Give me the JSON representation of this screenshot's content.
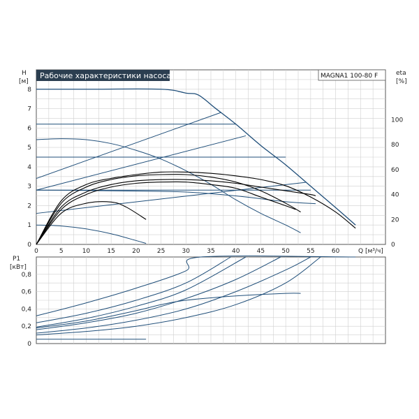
{
  "colors": {
    "curve": "#1f4e79",
    "eta": "#000000",
    "grid": "#cfcfcf",
    "frame": "#555555",
    "title_bg": "#2b3e50"
  },
  "chart_data": [
    {
      "type": "line",
      "title": "Рабочие характеристики насоса",
      "model": "MAGNA1 100-80 F",
      "ylabel": "H",
      "yunit": "[м]",
      "y2label": "eta",
      "y2unit": "[%]",
      "xlabel": "Q",
      "xunit": "[м³/ч]",
      "xlim": [
        0,
        70
      ],
      "ylim": [
        0,
        9
      ],
      "y2lim": [
        0,
        140
      ],
      "x_ticks": [
        "0",
        "5",
        "10",
        "15",
        "20",
        "25",
        "30",
        "35",
        "40",
        "45",
        "50",
        "55",
        "60"
      ],
      "y_ticks": [
        "0",
        "1",
        "2",
        "3",
        "4",
        "5",
        "6",
        "7",
        "8"
      ],
      "y2_ticks": [
        "0",
        "20",
        "40",
        "60",
        "80",
        "100"
      ],
      "grid": true,
      "head_curves": [
        [
          [
            0,
            8.0
          ],
          [
            10,
            8.0
          ],
          [
            25,
            8.0
          ],
          [
            30,
            7.8
          ],
          [
            32.5,
            7.7
          ],
          [
            36,
            7.0
          ],
          [
            40,
            6.2
          ],
          [
            45,
            5.1
          ],
          [
            50,
            4.1
          ],
          [
            55,
            3.0
          ],
          [
            60,
            1.9
          ],
          [
            64,
            1.0
          ]
        ],
        [
          [
            0,
            6.2
          ],
          [
            30,
            6.2
          ],
          [
            40,
            6.2
          ]
        ],
        [
          [
            0,
            4.5
          ],
          [
            30,
            4.5
          ],
          [
            50,
            4.5
          ]
        ],
        [
          [
            0,
            2.8
          ],
          [
            30,
            2.8
          ],
          [
            55,
            2.8
          ]
        ],
        [
          [
            0,
            3.4
          ],
          [
            37,
            6.8
          ]
        ],
        [
          [
            0,
            2.8
          ],
          [
            42,
            5.6
          ]
        ],
        [
          [
            0,
            1.6
          ],
          [
            54,
            3.2
          ]
        ],
        [
          [
            0,
            5.4
          ],
          [
            5,
            5.45
          ],
          [
            10,
            5.4
          ],
          [
            15,
            5.2
          ],
          [
            20,
            4.85
          ],
          [
            25,
            4.4
          ],
          [
            30,
            3.8
          ],
          [
            35,
            3.1
          ],
          [
            40,
            2.3
          ],
          [
            45,
            1.6
          ],
          [
            50,
            1.0
          ],
          [
            53,
            0.6
          ]
        ],
        [
          [
            0,
            1.0
          ],
          [
            5,
            0.95
          ],
          [
            10,
            0.8
          ],
          [
            15,
            0.55
          ],
          [
            20,
            0.2
          ],
          [
            22,
            0.05
          ]
        ],
        [
          [
            0,
            2.8
          ],
          [
            10,
            2.78
          ],
          [
            20,
            2.75
          ],
          [
            30,
            2.7
          ],
          [
            40,
            2.5
          ],
          [
            50,
            2.2
          ],
          [
            56,
            2.1
          ]
        ]
      ],
      "eta_curves": [
        [
          [
            0,
            0
          ],
          [
            5,
            35
          ],
          [
            10,
            48
          ],
          [
            15,
            53
          ],
          [
            20,
            56
          ],
          [
            25,
            58
          ],
          [
            30,
            58
          ],
          [
            35,
            57
          ],
          [
            40,
            55
          ],
          [
            45,
            52
          ],
          [
            50,
            47
          ],
          [
            55,
            38
          ],
          [
            60,
            26
          ],
          [
            64,
            13
          ]
        ],
        [
          [
            0,
            0
          ],
          [
            5,
            33
          ],
          [
            10,
            46
          ],
          [
            15,
            52
          ],
          [
            20,
            55
          ],
          [
            25,
            56
          ],
          [
            30,
            56
          ],
          [
            35,
            54
          ],
          [
            40,
            50
          ],
          [
            45,
            43
          ],
          [
            50,
            33
          ],
          [
            53,
            26
          ]
        ],
        [
          [
            0,
            0
          ],
          [
            5,
            30
          ],
          [
            10,
            42
          ],
          [
            15,
            48
          ],
          [
            20,
            51
          ],
          [
            25,
            52
          ],
          [
            30,
            52
          ],
          [
            35,
            51
          ],
          [
            40,
            49
          ],
          [
            45,
            46
          ],
          [
            50,
            43
          ],
          [
            55,
            40
          ],
          [
            56,
            39
          ]
        ],
        [
          [
            0,
            0
          ],
          [
            5,
            28
          ],
          [
            10,
            40
          ],
          [
            15,
            46
          ],
          [
            20,
            49
          ],
          [
            25,
            50
          ],
          [
            30,
            50
          ],
          [
            35,
            48
          ],
          [
            40,
            45
          ],
          [
            45,
            38
          ],
          [
            50,
            31
          ],
          [
            52,
            28
          ]
        ],
        [
          [
            0,
            0
          ],
          [
            5,
            25
          ],
          [
            10,
            33
          ],
          [
            15,
            34
          ],
          [
            18,
            30
          ],
          [
            22,
            20
          ]
        ]
      ]
    },
    {
      "type": "line",
      "ylabel": "P1",
      "yunit": "[кВт]",
      "xlim": [
        0,
        70
      ],
      "ylim": [
        0,
        1.0
      ],
      "y_ticks": [
        "0",
        "0,2",
        "0,4",
        "0,6",
        "0,8"
      ],
      "grid": true,
      "power_curves": [
        [
          [
            0,
            0.32
          ],
          [
            10,
            0.47
          ],
          [
            20,
            0.64
          ],
          [
            30,
            0.84
          ],
          [
            33,
            1.0
          ],
          [
            64,
            1.0
          ]
        ],
        [
          [
            0,
            0.24
          ],
          [
            10,
            0.35
          ],
          [
            20,
            0.5
          ],
          [
            30,
            0.7
          ],
          [
            39,
            1.0
          ]
        ],
        [
          [
            0,
            0.19
          ],
          [
            10,
            0.29
          ],
          [
            20,
            0.43
          ],
          [
            30,
            0.62
          ],
          [
            42,
            1.0
          ]
        ],
        [
          [
            0,
            0.16
          ],
          [
            10,
            0.24
          ],
          [
            20,
            0.35
          ],
          [
            30,
            0.52
          ],
          [
            40,
            0.74
          ],
          [
            49,
            1.0
          ]
        ],
        [
          [
            0,
            0.12
          ],
          [
            10,
            0.18
          ],
          [
            20,
            0.27
          ],
          [
            30,
            0.4
          ],
          [
            40,
            0.6
          ],
          [
            50,
            0.85
          ],
          [
            55,
            1.0
          ]
        ],
        [
          [
            0,
            0.1
          ],
          [
            10,
            0.14
          ],
          [
            20,
            0.2
          ],
          [
            30,
            0.3
          ],
          [
            40,
            0.45
          ],
          [
            50,
            0.7
          ],
          [
            57,
            1.0
          ]
        ],
        [
          [
            0,
            0.18
          ],
          [
            10,
            0.26
          ],
          [
            20,
            0.38
          ],
          [
            25,
            0.45
          ],
          [
            30,
            0.5
          ],
          [
            40,
            0.55
          ],
          [
            50,
            0.58
          ],
          [
            53,
            0.58
          ]
        ],
        [
          [
            0,
            0.05
          ],
          [
            22,
            0.05
          ]
        ]
      ]
    }
  ]
}
